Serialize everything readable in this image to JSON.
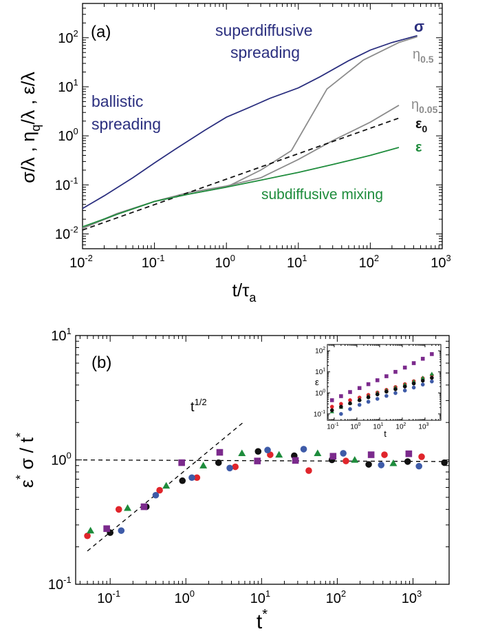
{
  "chart_data": [
    {
      "type": "line",
      "panel_label": "(a)",
      "xscale": "log",
      "yscale": "log",
      "xlim": [
        0.01,
        1000
      ],
      "ylim": [
        0.005,
        500
      ],
      "xlabel": {
        "main": "t/τ",
        "sub": "a"
      },
      "ylabel": "σ/λ , η_q/λ , ε/λ",
      "xticks": [
        {
          "base": "10",
          "exp": "-2"
        },
        {
          "base": "10",
          "exp": "-1"
        },
        {
          "base": "10",
          "exp": "0"
        },
        {
          "base": "10",
          "exp": "1"
        },
        {
          "base": "10",
          "exp": "2"
        },
        {
          "base": "10",
          "exp": "3"
        }
      ],
      "yticks": [
        {
          "base": "10",
          "exp": "-2"
        },
        {
          "base": "10",
          "exp": "-1"
        },
        {
          "base": "10",
          "exp": "0"
        },
        {
          "base": "10",
          "exp": "1"
        },
        {
          "base": "10",
          "exp": "2"
        }
      ],
      "grid": false,
      "series": [
        {
          "key": "sigma",
          "name": "σ",
          "color": "#2b2f7f",
          "dash": "solid",
          "x": [
            0.01,
            0.02,
            0.05,
            0.1,
            0.2,
            0.5,
            1,
            2,
            4,
            10,
            20,
            50,
            100,
            200,
            450
          ],
          "y": [
            0.033,
            0.06,
            0.14,
            0.28,
            0.55,
            1.3,
            2.4,
            3.7,
            5.8,
            9.5,
            16,
            34,
            56,
            80,
            110
          ]
        },
        {
          "key": "eta05",
          "name": "η",
          "name_sub": "0.5",
          "color": "#8c8c8c",
          "dash": "solid",
          "x": [
            0.01,
            0.03,
            0.1,
            0.3,
            1,
            3,
            8,
            25,
            80,
            250,
            450
          ],
          "y": [
            0.013,
            0.025,
            0.046,
            0.065,
            0.09,
            0.2,
            0.5,
            9,
            35,
            80,
            105
          ]
        },
        {
          "key": "eta005",
          "name": "η",
          "name_sub": "0.05",
          "color": "#8c8c8c",
          "dash": "solid",
          "x": [
            0.01,
            0.03,
            0.1,
            0.3,
            1,
            3,
            10,
            30,
            100,
            250
          ],
          "y": [
            0.013,
            0.026,
            0.046,
            0.07,
            0.095,
            0.14,
            0.33,
            0.8,
            1.9,
            4.2
          ]
        },
        {
          "key": "eps0",
          "name": "ε",
          "name_sub": "0",
          "color": "#111111",
          "dash": "dashed",
          "x": [
            0.01,
            250
          ],
          "y": [
            0.012,
            2.3
          ]
        },
        {
          "key": "eps",
          "name": "ε",
          "color": "#1e8c3c",
          "dash": "solid",
          "x": [
            0.01,
            0.03,
            0.1,
            0.3,
            1,
            3,
            10,
            30,
            100,
            250
          ],
          "y": [
            0.014,
            0.025,
            0.046,
            0.065,
            0.09,
            0.125,
            0.18,
            0.26,
            0.4,
            0.58
          ]
        }
      ],
      "annotations": [
        {
          "lines": [
            "superdiffusive",
            "spreading"
          ],
          "color": "#2b2f7f"
        },
        {
          "lines": [
            "ballistic",
            "spreading"
          ],
          "color": "#2b2f7f"
        },
        {
          "lines": [
            "subdiffusive mixing"
          ],
          "color": "#1e8c3c"
        }
      ]
    },
    {
      "type": "scatter",
      "panel_label": "(b)",
      "xscale": "log",
      "yscale": "log",
      "xlim": [
        0.035,
        3000
      ],
      "ylim": [
        0.1,
        10
      ],
      "xlabel": {
        "main": "t",
        "sup": "*"
      },
      "ylabel": "ε* σ / t*",
      "xticks": [
        {
          "base": "10",
          "exp": "-1"
        },
        {
          "base": "10",
          "exp": "0"
        },
        {
          "base": "10",
          "exp": "1"
        },
        {
          "base": "10",
          "exp": "2"
        },
        {
          "base": "10",
          "exp": "3"
        }
      ],
      "yticks": [
        {
          "base": "10",
          "exp": "-1"
        },
        {
          "base": "10",
          "exp": "0"
        },
        {
          "base": "10",
          "exp": "1"
        }
      ],
      "grid": false,
      "reference_lines": [
        {
          "key": "ref_half",
          "label_base": "t",
          "label_exp": "1/2",
          "x": [
            0.05,
            6
          ],
          "y": [
            0.185,
            2.05
          ]
        },
        {
          "key": "ref_flat",
          "x": [
            0.035,
            3000
          ],
          "y": [
            1.0,
            0.97
          ]
        }
      ],
      "series": [
        {
          "key": "black",
          "color": "#111111",
          "marker": "circle",
          "x": [
            0.1,
            0.3,
            0.9,
            2.7,
            9,
            27,
            85,
            260,
            850,
            2600
          ],
          "y": [
            0.26,
            0.42,
            0.68,
            0.95,
            1.17,
            1.08,
            1.0,
            0.92,
            0.97,
            0.95
          ]
        },
        {
          "key": "red",
          "color": "#e0252b",
          "marker": "circle",
          "x": [
            0.05,
            0.13,
            0.45,
            1.4,
            4.5,
            13,
            42,
            130,
            420,
            1300
          ],
          "y": [
            0.245,
            0.4,
            0.57,
            0.72,
            0.88,
            1.1,
            0.82,
            0.98,
            1.1,
            1.06
          ]
        },
        {
          "key": "blue",
          "color": "#3e5ba8",
          "marker": "circle",
          "x": [
            0.14,
            0.4,
            1.2,
            3.8,
            12,
            36,
            120,
            380,
            1200
          ],
          "y": [
            0.27,
            0.52,
            0.72,
            0.86,
            1.2,
            1.22,
            1.13,
            0.91,
            0.89
          ]
        },
        {
          "key": "purple",
          "color": "#7b2a8c",
          "marker": "square",
          "x": [
            0.09,
            0.28,
            0.88,
            2.8,
            8.8,
            28,
            88,
            280,
            880
          ],
          "y": [
            0.28,
            0.42,
            0.95,
            1.15,
            0.98,
            0.99,
            1.07,
            1.1,
            1.12
          ]
        },
        {
          "key": "green",
          "color": "#1e8c3c",
          "marker": "triangle",
          "x": [
            0.055,
            0.17,
            0.55,
            1.7,
            5.5,
            17,
            55,
            170,
            550
          ],
          "y": [
            0.27,
            0.41,
            0.62,
            0.9,
            1.13,
            1.1,
            1.13,
            1.0,
            0.94
          ]
        }
      ]
    },
    {
      "type": "scatter",
      "panel_label": "inset",
      "xscale": "log",
      "yscale": "log",
      "xlim": [
        0.05,
        5000
      ],
      "ylim": [
        0.05,
        200
      ],
      "xlabel": "t",
      "ylabel": "ε",
      "xticks": [
        {
          "base": "10",
          "exp": "-1"
        },
        {
          "base": "10",
          "exp": "0"
        },
        {
          "base": "10",
          "exp": "1"
        },
        {
          "base": "10",
          "exp": "2"
        },
        {
          "base": "10",
          "exp": "3"
        }
      ],
      "yticks": [
        {
          "base": "10",
          "exp": "-1"
        },
        {
          "base": "10",
          "exp": "0"
        },
        {
          "base": "10",
          "exp": "1"
        },
        {
          "base": "10",
          "exp": "2"
        }
      ],
      "series": [
        {
          "key": "purple",
          "color": "#7b2a8c",
          "marker": "square",
          "x": [
            0.08,
            0.2,
            0.5,
            1.3,
            3.2,
            8,
            20,
            50,
            130,
            320,
            800,
            2000
          ],
          "y": [
            0.45,
            0.7,
            1.1,
            1.7,
            2.6,
            4,
            6.2,
            10,
            16,
            26,
            42,
            70
          ]
        },
        {
          "key": "red",
          "color": "#e0252b",
          "marker": "circle",
          "x": [
            0.08,
            0.2,
            0.5,
            1.3,
            3.2,
            8,
            20,
            50,
            130,
            320,
            800,
            2000
          ],
          "y": [
            0.22,
            0.3,
            0.45,
            0.6,
            0.8,
            1.05,
            1.4,
            1.9,
            2.6,
            3.6,
            5,
            7
          ]
        },
        {
          "key": "green",
          "color": "#1e8c3c",
          "marker": "triangle",
          "x": [
            0.08,
            0.2,
            0.5,
            1.3,
            3.2,
            8,
            20,
            50,
            130,
            320,
            800,
            2000
          ],
          "y": [
            0.13,
            0.21,
            0.33,
            0.5,
            0.7,
            1.0,
            1.35,
            1.8,
            2.5,
            3.5,
            5.2,
            8
          ]
        },
        {
          "key": "black",
          "color": "#111111",
          "marker": "circle",
          "x": [
            0.08,
            0.2,
            0.5,
            1.3,
            3.2,
            8,
            20,
            50,
            130,
            320,
            800,
            2000
          ],
          "y": [
            0.15,
            0.22,
            0.32,
            0.45,
            0.62,
            0.85,
            1.15,
            1.5,
            2.0,
            2.8,
            3.8,
            5.2
          ]
        },
        {
          "key": "blue",
          "color": "#3e5ba8",
          "marker": "circle",
          "x": [
            0.2,
            0.5,
            1.3,
            3.2,
            8,
            20,
            50,
            130,
            320,
            800,
            2000
          ],
          "y": [
            0.1,
            0.17,
            0.27,
            0.38,
            0.52,
            0.72,
            0.98,
            1.3,
            1.8,
            2.5,
            3.5
          ]
        }
      ]
    }
  ]
}
